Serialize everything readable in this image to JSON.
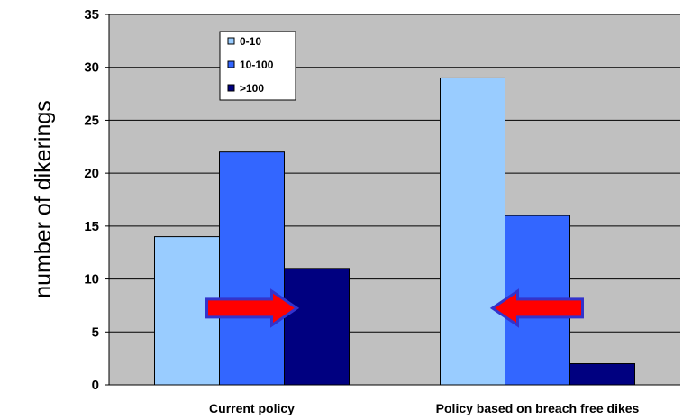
{
  "chart_data": {
    "type": "bar",
    "title": "",
    "xlabel": "",
    "ylabel": "number of dikerings",
    "categories": [
      "Current policy",
      "Policy based on breach free dikes"
    ],
    "series": [
      {
        "name": "0-10",
        "values": [
          14,
          29
        ],
        "color": "#99ccff"
      },
      {
        "name": "10-100",
        "values": [
          22,
          16
        ],
        "color": "#3366ff"
      },
      {
        "name": ">100",
        "values": [
          11,
          2
        ],
        "color": "#000080"
      }
    ],
    "ylim": [
      0,
      35
    ],
    "yticks": [
      0,
      5,
      10,
      15,
      20,
      25,
      30,
      35
    ],
    "grid": true,
    "legend_position": "top-left",
    "plot_background": "#c0c0c0",
    "annotations": [
      {
        "type": "arrow",
        "direction": "right",
        "group": 0,
        "value": 7.5,
        "color": "#ff0000",
        "edge_color": "#3333cc"
      },
      {
        "type": "arrow",
        "direction": "left",
        "group": 1,
        "value": 7.5,
        "color": "#ff0000",
        "edge_color": "#3333cc"
      }
    ]
  }
}
